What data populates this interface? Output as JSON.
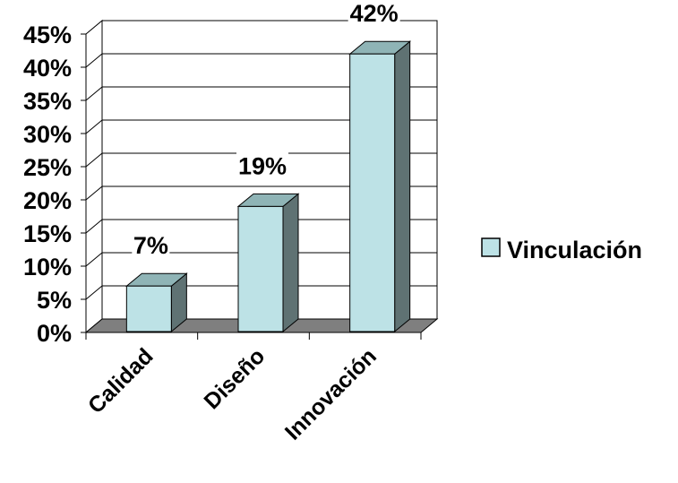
{
  "chart_data": {
    "type": "bar",
    "categories": [
      "Calidad",
      "Diseño",
      "Innovación"
    ],
    "series": [
      {
        "name": "Vinculación",
        "values": [
          7,
          19,
          42
        ],
        "labels": [
          "7%",
          "19%",
          "42%"
        ],
        "color": "#bde2e6"
      }
    ],
    "ylim": [
      0,
      45
    ],
    "yticks": [
      "0%",
      "5%",
      "10%",
      "15%",
      "20%",
      "25%",
      "30%",
      "35%",
      "40%",
      "45%"
    ],
    "grid": true,
    "three_d": true,
    "legend_position": "right",
    "colors": {
      "bar_front": "#bde2e6",
      "bar_top": "#8fb4b6",
      "bar_side": "#5f7273",
      "floor": "#7f7f7f"
    }
  }
}
